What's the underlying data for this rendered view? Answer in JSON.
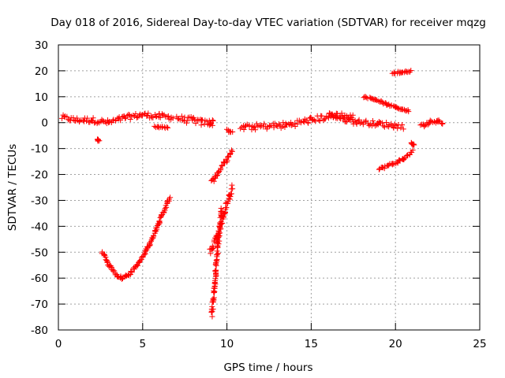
{
  "chart_data": {
    "type": "scatter",
    "title": "Day 018 of 2016, Sidereal Day-to-day VTEC variation (SDTVAR) for receiver mqzg",
    "xlabel": "GPS time / hours",
    "ylabel": "SDTVAR / TECUs",
    "xlim": [
      0,
      25
    ],
    "ylim": [
      -80,
      30
    ],
    "xticks": [
      0,
      5,
      10,
      15,
      20,
      25
    ],
    "yticks": [
      -80,
      -70,
      -60,
      -50,
      -40,
      -30,
      -20,
      -10,
      0,
      10,
      20,
      30
    ],
    "grid": true,
    "marker": "+",
    "color": "#ff0000",
    "segments": [
      {
        "name": "main-band-1",
        "x": [
          0.2,
          1.0,
          2.0,
          3.0,
          4.0,
          5.0,
          6.0,
          6.8
        ],
        "y": [
          2,
          1,
          1,
          0,
          2,
          3,
          2.5,
          2
        ],
        "noise": 1.0
      },
      {
        "name": "main-band-2",
        "x": [
          7.0,
          7.5,
          8.0,
          8.5,
          9.0,
          9.2
        ],
        "y": [
          2,
          1,
          1,
          0,
          0,
          0
        ],
        "noise": 1.2
      },
      {
        "name": "drop-a",
        "x": [
          5.7,
          6.5
        ],
        "y": [
          -1.5,
          -2
        ],
        "noise": 0.3
      },
      {
        "name": "point-a",
        "x": [
          2.3,
          2.4
        ],
        "y": [
          -6.5,
          -7
        ],
        "noise": 0.3
      },
      {
        "name": "arc-1",
        "x": [
          2.6,
          3.0,
          3.5,
          3.8,
          4.2,
          4.8,
          5.4,
          6.0,
          6.6
        ],
        "y": [
          -50,
          -55,
          -59,
          -60,
          -58.5,
          -54,
          -47,
          -38,
          -29
        ],
        "noise": 0.5
      },
      {
        "name": "mid-1",
        "x": [
          9.1,
          9.4,
          9.8,
          10.3
        ],
        "y": [
          -23,
          -20,
          -16,
          -11
        ],
        "noise": 0.8
      },
      {
        "name": "point-b",
        "x": [
          10.0,
          10.3
        ],
        "y": [
          -3,
          -4
        ],
        "noise": 0.5
      },
      {
        "name": "steep-1",
        "x": [
          9.1,
          9.3,
          9.5,
          9.7
        ],
        "y": [
          -74,
          -60,
          -45,
          -33
        ],
        "noise": 1.5
      },
      {
        "name": "steep-2",
        "x": [
          9.0,
          9.4,
          9.8,
          10.3
        ],
        "y": [
          -50,
          -44,
          -36,
          -25
        ],
        "noise": 1.5
      },
      {
        "name": "main-band-3",
        "x": [
          10.8,
          12.0,
          13.5,
          15.0,
          16.5,
          17.5
        ],
        "y": [
          -2,
          -1.5,
          -1,
          1,
          3,
          2
        ],
        "noise": 1.2
      },
      {
        "name": "band-4",
        "x": [
          16.0,
          17.5,
          19.0,
          20.5
        ],
        "y": [
          3,
          0.5,
          -0.5,
          -1.5
        ],
        "noise": 1.0
      },
      {
        "name": "rising-arc",
        "x": [
          18.1,
          18.8,
          19.5,
          20.2,
          20.8
        ],
        "y": [
          10,
          9,
          7,
          5.5,
          4.5
        ],
        "noise": 0.3
      },
      {
        "name": "top-cluster",
        "x": [
          19.8,
          20.3,
          20.9
        ],
        "y": [
          19,
          19.5,
          20
        ],
        "noise": 0.4
      },
      {
        "name": "lower-arc",
        "x": [
          19.0,
          19.8,
          20.5,
          21.0
        ],
        "y": [
          -18,
          -16,
          -14,
          -11
        ],
        "noise": 0.5
      },
      {
        "name": "late-points",
        "x": [
          20.9,
          21.1
        ],
        "y": [
          -8,
          -8.5
        ],
        "noise": 0.4
      },
      {
        "name": "end-band",
        "x": [
          21.5,
          22.0,
          22.5,
          22.8
        ],
        "y": [
          -1.5,
          0,
          1,
          -0.5
        ],
        "noise": 0.8
      }
    ]
  }
}
